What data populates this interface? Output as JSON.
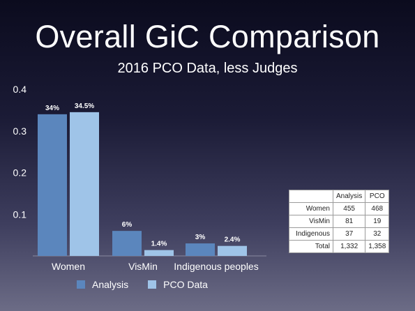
{
  "slide": {
    "title": "Overall GiC Comparison",
    "subtitle": "2016 PCO Data, less Judges"
  },
  "chart_data": {
    "type": "bar",
    "categories": [
      "Women",
      "VisMin",
      "Indigenous peoples"
    ],
    "series": [
      {
        "name": "Analysis",
        "values": [
          0.34,
          0.06,
          0.03
        ],
        "labels": [
          "34%",
          "6%",
          "3%"
        ],
        "color": "#5b86bd"
      },
      {
        "name": "PCO Data",
        "values": [
          0.345,
          0.014,
          0.024
        ],
        "labels": [
          "34.5%",
          "1.4%",
          "2.4%"
        ],
        "color": "#9fc4e8"
      }
    ],
    "ylim": [
      0,
      0.4
    ],
    "yticks": [
      "0.1",
      "0.2",
      "0.3",
      "0.4"
    ],
    "ytick_values": [
      0.1,
      0.2,
      0.3,
      0.4
    ],
    "grid": false,
    "legend_position": "bottom-left"
  },
  "table": {
    "headers": [
      "",
      "Analysis",
      "PCO"
    ],
    "rows": [
      [
        "Women",
        "455",
        "468"
      ],
      [
        "VisMin",
        "81",
        "19"
      ],
      [
        "Indigenous",
        "37",
        "32"
      ],
      [
        "Total",
        "1,332",
        "1,358"
      ]
    ]
  },
  "colors": {
    "text": "#ffffff",
    "table_bg": "#ffffff",
    "table_text": "#222222"
  }
}
